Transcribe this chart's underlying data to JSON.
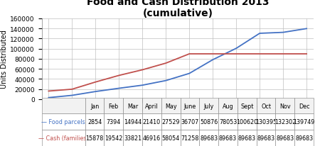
{
  "title": "Food and Cash Distribution 2013\n(cumulative)",
  "ylabel": "Units Distributed",
  "months": [
    "Jan",
    "Feb",
    "Mar",
    "April",
    "May",
    "June",
    "July",
    "Aug",
    "Sept",
    "Oct",
    "Nov",
    "Dec"
  ],
  "food_parcels": [
    2854,
    7394,
    14944,
    21410,
    27529,
    36707,
    50876,
    78053,
    100620,
    130395,
    132302,
    139749
  ],
  "cash_families": [
    15878,
    19542,
    33821,
    46916,
    58054,
    71258,
    89683,
    89683,
    89683,
    89683,
    89683,
    89683
  ],
  "food_color": "#4472c4",
  "cash_color": "#c0504d",
  "food_label": "Food parcels",
  "cash_label": "Cash (families)",
  "ylim": [
    0,
    160000
  ],
  "yticks": [
    0,
    20000,
    40000,
    60000,
    80000,
    100000,
    120000,
    140000,
    160000
  ],
  "bg_color": "#ffffff",
  "grid_color": "#bfbfbf",
  "title_fontsize": 10,
  "label_fontsize": 7,
  "tick_fontsize": 6.5,
  "table_fontsize": 5.8
}
